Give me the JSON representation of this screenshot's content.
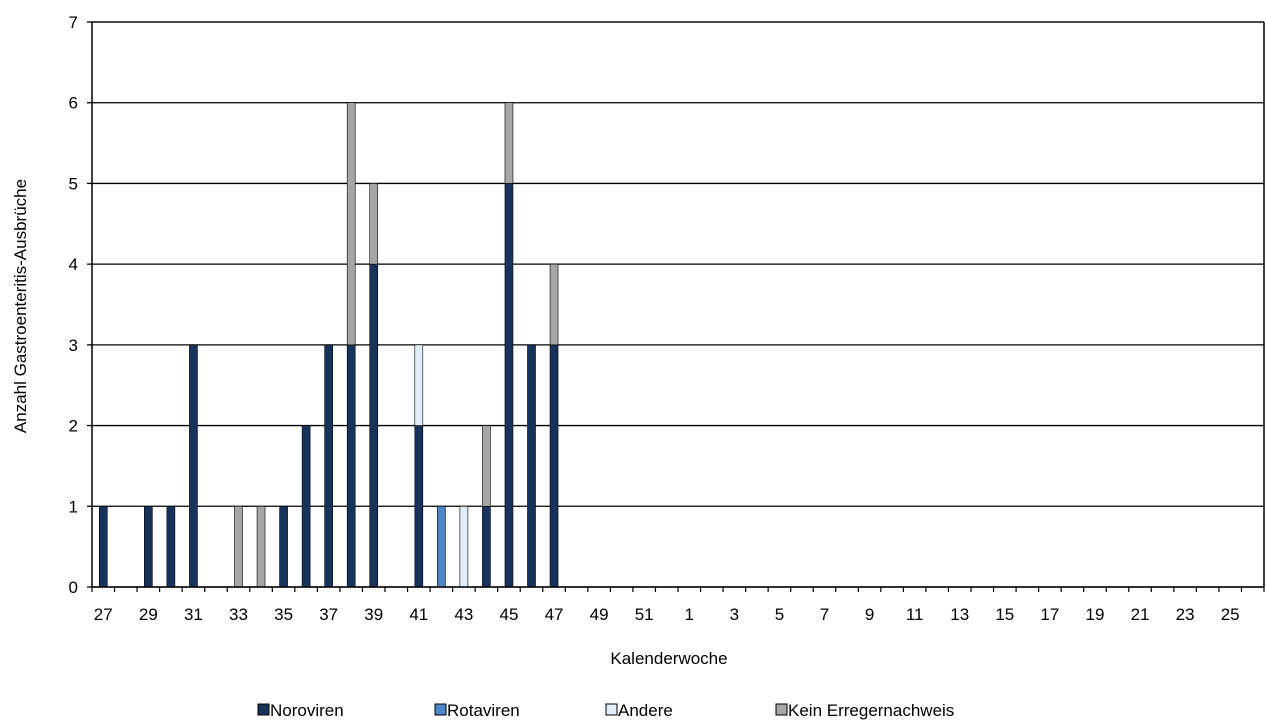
{
  "chart_data": {
    "type": "bar",
    "stacked": true,
    "xlabel": "Kalenderwoche",
    "ylabel": "Anzahl Gastroenteritis-Ausbrüche",
    "ylim": [
      0,
      7
    ],
    "yticks": [
      "0",
      "1",
      "2",
      "3",
      "4",
      "5",
      "6",
      "7"
    ],
    "grid": true,
    "legend_position": "bottom",
    "categories": [
      "27",
      "28",
      "29",
      "30",
      "31",
      "32",
      "33",
      "34",
      "35",
      "36",
      "37",
      "38",
      "39",
      "40",
      "41",
      "42",
      "43",
      "44",
      "45",
      "46",
      "47",
      "48",
      "49",
      "50",
      "51",
      "52",
      "1",
      "2",
      "3",
      "4",
      "5",
      "6",
      "7",
      "8",
      "9",
      "10",
      "11",
      "12",
      "13",
      "14",
      "15",
      "16",
      "17",
      "18",
      "19",
      "20",
      "21",
      "22",
      "23",
      "24",
      "25",
      "26"
    ],
    "tick_labels": [
      "27",
      "29",
      "31",
      "33",
      "35",
      "37",
      "39",
      "41",
      "43",
      "45",
      "47",
      "49",
      "51",
      "1",
      "3",
      "5",
      "7",
      "9",
      "11",
      "13",
      "15",
      "17",
      "19",
      "21",
      "23",
      "25"
    ],
    "series": [
      {
        "name": "Noroviren",
        "color": "#17335c",
        "values": [
          1,
          0,
          1,
          1,
          3,
          0,
          0,
          0,
          1,
          2,
          3,
          3,
          4,
          0,
          2,
          0,
          0,
          1,
          5,
          3,
          3,
          0,
          0,
          0,
          0,
          0,
          0,
          0,
          0,
          0,
          0,
          0,
          0,
          0,
          0,
          0,
          0,
          0,
          0,
          0,
          0,
          0,
          0,
          0,
          0,
          0,
          0,
          0,
          0,
          0,
          0,
          0
        ]
      },
      {
        "name": "Rotaviren",
        "color": "#4d86c9",
        "values": [
          0,
          0,
          0,
          0,
          0,
          0,
          0,
          0,
          0,
          0,
          0,
          0,
          0,
          0,
          0,
          1,
          0,
          0,
          0,
          0,
          0,
          0,
          0,
          0,
          0,
          0,
          0,
          0,
          0,
          0,
          0,
          0,
          0,
          0,
          0,
          0,
          0,
          0,
          0,
          0,
          0,
          0,
          0,
          0,
          0,
          0,
          0,
          0,
          0,
          0,
          0,
          0
        ]
      },
      {
        "name": "Andere",
        "color": "#e1eefa",
        "values": [
          0,
          0,
          0,
          0,
          0,
          0,
          0,
          0,
          0,
          0,
          0,
          0,
          0,
          0,
          1,
          0,
          1,
          0,
          0,
          0,
          0,
          0,
          0,
          0,
          0,
          0,
          0,
          0,
          0,
          0,
          0,
          0,
          0,
          0,
          0,
          0,
          0,
          0,
          0,
          0,
          0,
          0,
          0,
          0,
          0,
          0,
          0,
          0,
          0,
          0,
          0,
          0
        ]
      },
      {
        "name": "Kein Erregernachweis",
        "color": "#a6a6a6",
        "values": [
          0,
          0,
          0,
          0,
          0,
          0,
          1,
          1,
          0,
          0,
          0,
          3,
          1,
          0,
          0,
          0,
          0,
          1,
          1,
          0,
          1,
          0,
          0,
          0,
          0,
          0,
          0,
          0,
          0,
          0,
          0,
          0,
          0,
          0,
          0,
          0,
          0,
          0,
          0,
          0,
          0,
          0,
          0,
          0,
          0,
          0,
          0,
          0,
          0,
          0,
          0,
          0
        ]
      }
    ]
  }
}
